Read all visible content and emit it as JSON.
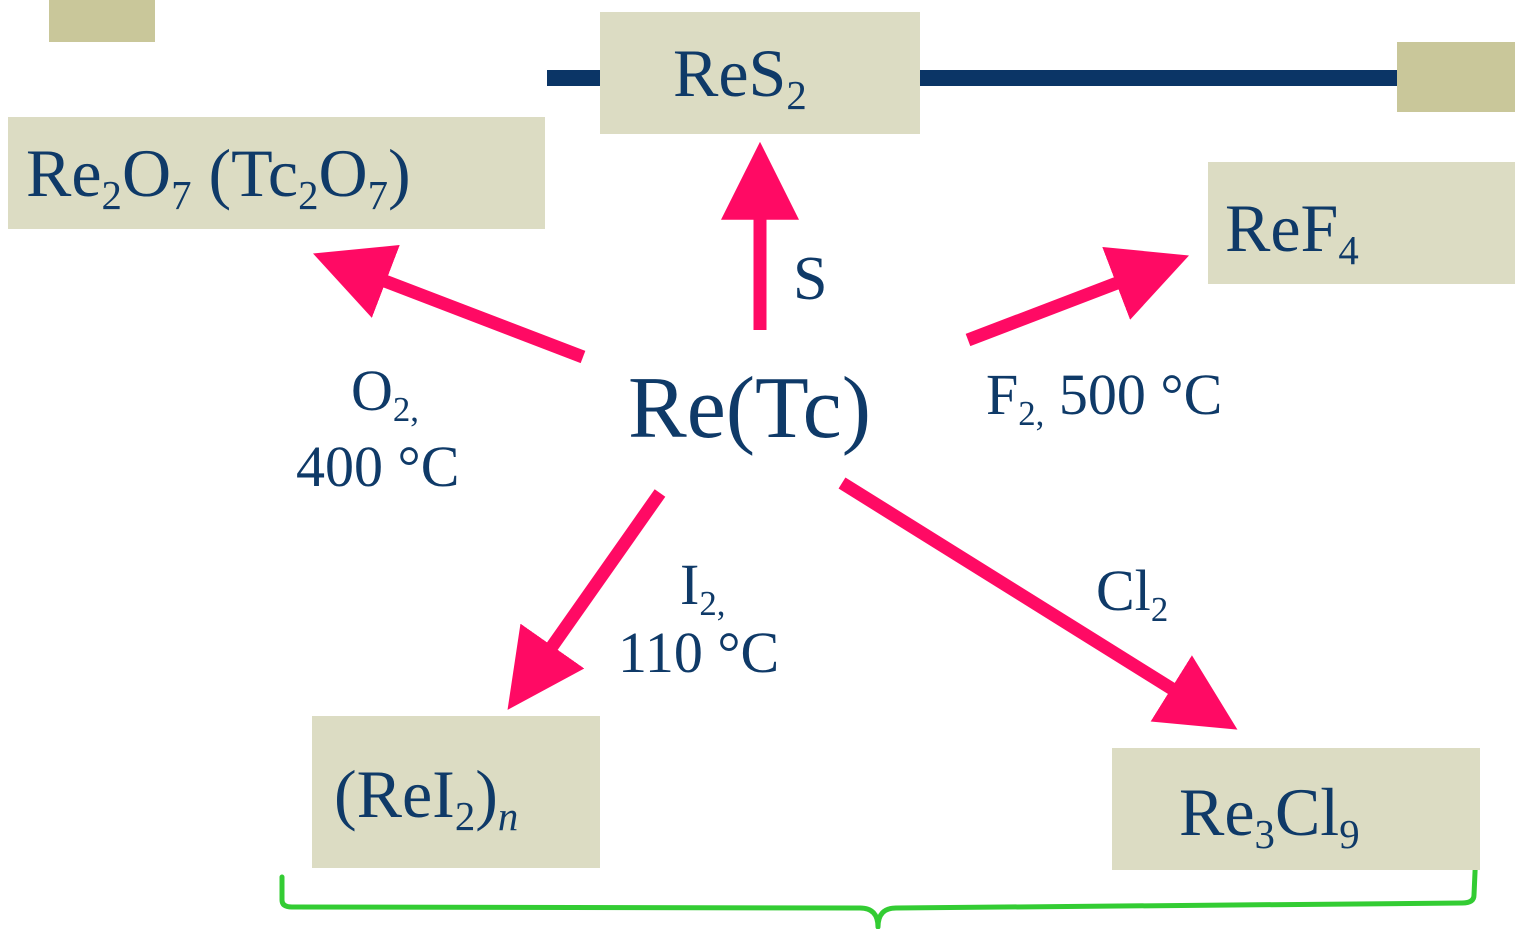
{
  "center": {
    "base": "Re(Tc)"
  },
  "products": {
    "re2o7": {
      "p1": "Re",
      "s1": "2",
      "p2": "O",
      "s2": "7",
      "p3": " (Tc",
      "s3": "2",
      "p4": "O",
      "s4": "7",
      "p5": ")"
    },
    "res2": {
      "p1": "ReS",
      "s1": "2"
    },
    "ref4": {
      "p1": "ReF",
      "s1": "4"
    },
    "rei2n": {
      "p1": "(ReI",
      "s1": "2",
      "p2": ")",
      "s2": "n"
    },
    "re3cl9": {
      "p1": "Re",
      "s1": "3",
      "p2": "Cl",
      "s2": "9"
    }
  },
  "conditions": {
    "o2": {
      "p1": "O",
      "s1": "2,",
      "line2": "400 °C"
    },
    "s": {
      "text": "S"
    },
    "f2": {
      "p1": "F",
      "s1": "2,",
      "p2": " 500 °C"
    },
    "i2": {
      "p1": "I",
      "s1": "2,",
      "line2": "110 °C"
    },
    "cl2": {
      "p1": "Cl",
      "s1": "2"
    }
  },
  "colors": {
    "arrow": "#ff0a64",
    "box": "#dcdcc3",
    "text": "#0f3a68",
    "bar": "#0b3566",
    "brace": "#33cc33",
    "deco": "#c9c79a"
  }
}
